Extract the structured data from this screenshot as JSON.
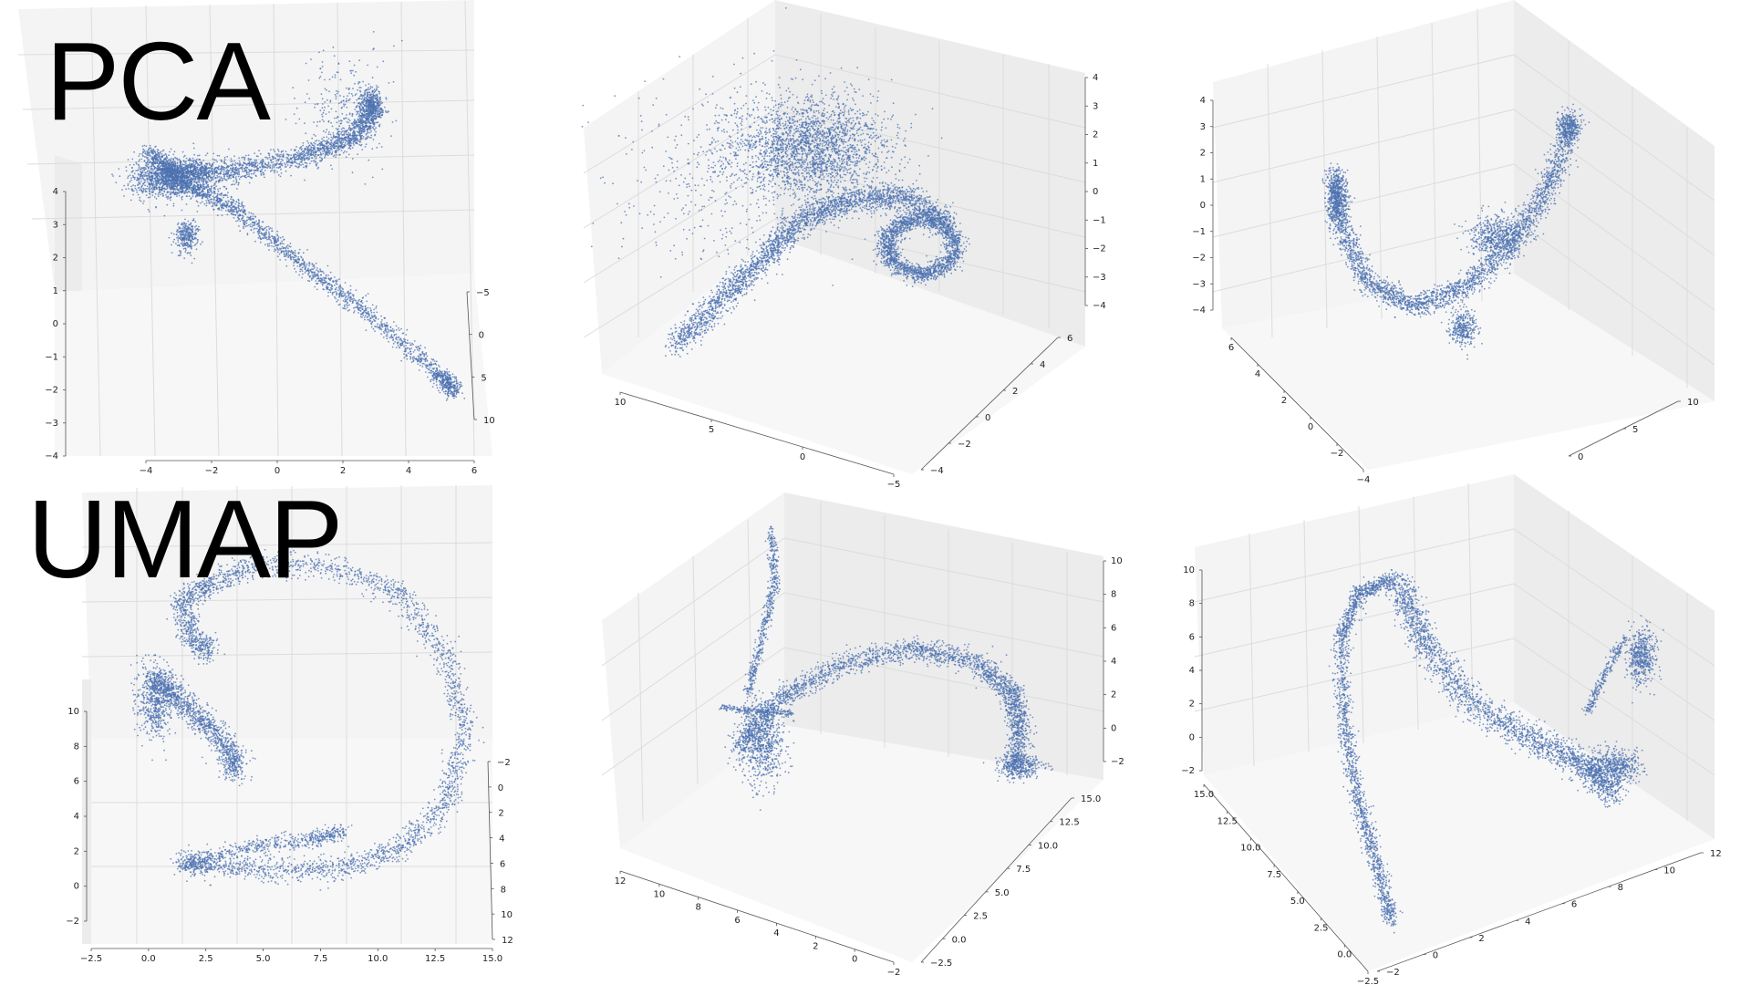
{
  "labels": {
    "pca": "PCA",
    "umap": "UMAP"
  },
  "style": {
    "point_color": "#4c72b0",
    "pane_left": "#ececec",
    "pane_back": "#f4f4f4",
    "pane_floor": "#f7f7f7",
    "grid_color": "#dcdcdc"
  },
  "chart_data": [
    {
      "type": "scatter",
      "projection": "3d",
      "row": "PCA",
      "view": 1,
      "x_ticks": [
        "−4",
        "−2",
        "0",
        "2",
        "4",
        "6"
      ],
      "y_ticks": [
        "−5",
        "0",
        "5",
        "10"
      ],
      "z_ticks": [
        "4",
        "3",
        "2",
        "1",
        "0",
        "−1",
        "−2",
        "−3",
        "−4"
      ]
    },
    {
      "type": "scatter",
      "projection": "3d",
      "row": "PCA",
      "view": 2,
      "x_ticks": [
        "10",
        "5",
        "0",
        "−5"
      ],
      "y_ticks": [
        "−4",
        "−2",
        "0",
        "2",
        "4",
        "6"
      ],
      "z_ticks": [
        "4",
        "3",
        "2",
        "1",
        "0",
        "−1",
        "−2",
        "−3",
        "−4"
      ]
    },
    {
      "type": "scatter",
      "projection": "3d",
      "row": "PCA",
      "view": 3,
      "x_ticks": [
        "6",
        "4",
        "2",
        "0",
        "−2",
        "−4"
      ],
      "y_ticks": [
        "0",
        "5",
        "10"
      ],
      "z_ticks": [
        "4",
        "3",
        "2",
        "1",
        "0",
        "−1",
        "−2",
        "−3",
        "−4"
      ]
    },
    {
      "type": "scatter",
      "projection": "3d",
      "row": "UMAP",
      "view": 1,
      "x_ticks": [
        "−2.5",
        "0.0",
        "2.5",
        "5.0",
        "7.5",
        "10.0",
        "12.5",
        "15.0"
      ],
      "y_ticks": [
        "−2",
        "0",
        "2",
        "4",
        "6",
        "8",
        "10",
        "12"
      ],
      "z_ticks": [
        "10",
        "8",
        "6",
        "4",
        "2",
        "0",
        "−2"
      ]
    },
    {
      "type": "scatter",
      "projection": "3d",
      "row": "UMAP",
      "view": 2,
      "x_ticks": [
        "12",
        "10",
        "8",
        "6",
        "4",
        "2",
        "0",
        "−2"
      ],
      "y_ticks": [
        "−2.5",
        "0.0",
        "2.5",
        "5.0",
        "7.5",
        "10.0",
        "12.5",
        "15.0"
      ],
      "z_ticks": [
        "10",
        "8",
        "6",
        "4",
        "2",
        "0",
        "−2"
      ]
    },
    {
      "type": "scatter",
      "projection": "3d",
      "row": "UMAP",
      "view": 3,
      "x_ticks": [
        "15.0",
        "12.5",
        "10.0",
        "7.5",
        "5.0",
        "2.5",
        "0.0",
        "−2.5"
      ],
      "y_ticks": [
        "−2",
        "0",
        "2",
        "4",
        "6",
        "8",
        "10",
        "12"
      ],
      "z_ticks": [
        "10",
        "8",
        "6",
        "4",
        "2",
        "0",
        "−2"
      ]
    }
  ]
}
